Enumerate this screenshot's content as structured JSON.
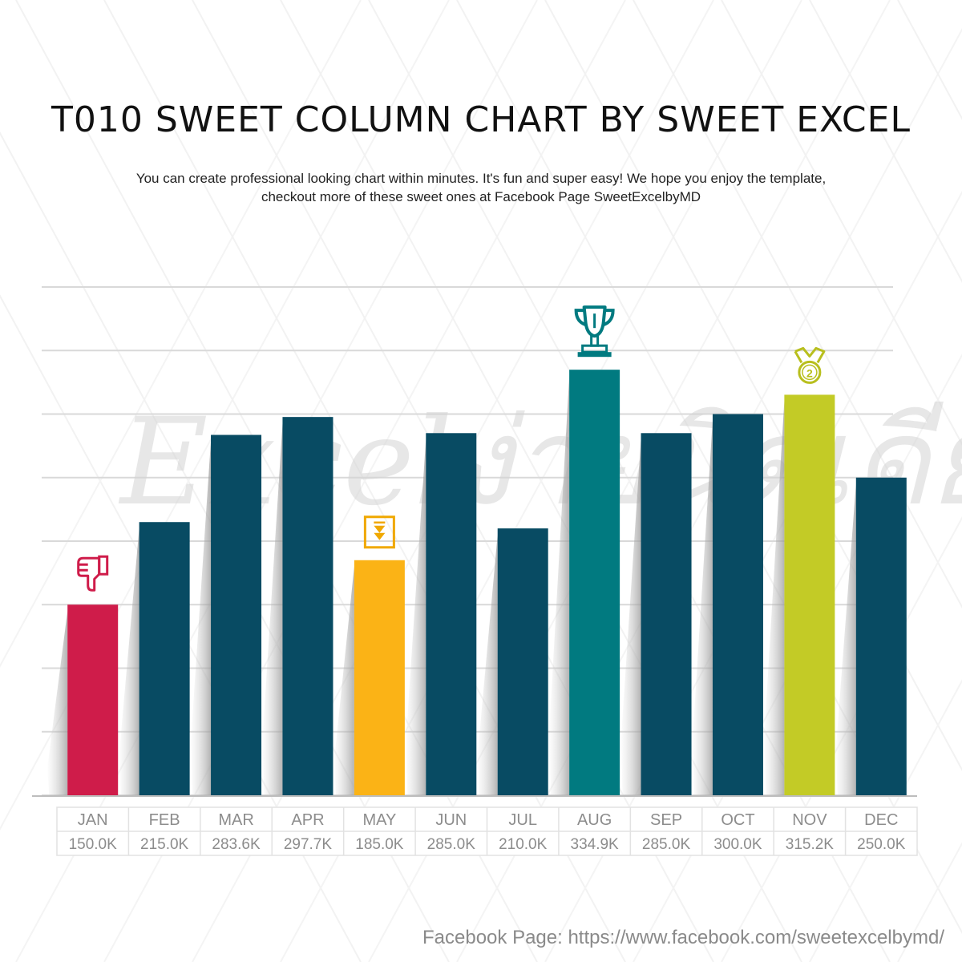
{
  "page": {
    "title": "T010 SWEET COLUMN CHART BY SWEET EXCEL",
    "subtitle_line1": "You can create professional looking chart within minutes. It's fun and super easy! We  hope you enjoy the template,",
    "subtitle_line2": "checkout more of these sweet ones at Facebook Page SweetExcelbyMD",
    "footer": "Facebook Page: https://www.facebook.com/sweetexcelbymd/",
    "watermark": "Excelง่ายนิดเดียว"
  },
  "colors": {
    "default_bar": "#084b63",
    "lowest_bar": "#cf1c4a",
    "may_bar": "#fbb316",
    "highest_bar": "#017a80",
    "second_bar": "#c3cb26",
    "grid": "#d9d9d9",
    "table_text": "#8c8c8c"
  },
  "chart_data": {
    "type": "bar",
    "title": "T010 SWEET COLUMN CHART BY SWEET EXCEL",
    "categories": [
      "JAN",
      "FEB",
      "MAR",
      "APR",
      "MAY",
      "JUN",
      "JUL",
      "AUG",
      "SEP",
      "OCT",
      "NOV",
      "DEC"
    ],
    "values": [
      150.0,
      215.0,
      283.6,
      297.7,
      185.0,
      285.0,
      210.0,
      334.9,
      285.0,
      300.0,
      315.2,
      250.0
    ],
    "value_labels": [
      "150.0K",
      "215.0K",
      "283.6K",
      "297.7K",
      "185.0K",
      "285.0K",
      "210.0K",
      "334.9K",
      "285.0K",
      "300.0K",
      "315.2K",
      "250.0K"
    ],
    "ylim": [
      0,
      400
    ],
    "grid": true,
    "highlights": {
      "JAN": {
        "icon": "thumbs-down-icon",
        "color": "lowest_bar"
      },
      "MAY": {
        "icon": "down-arrow-box-icon",
        "color": "may_bar"
      },
      "AUG": {
        "icon": "trophy-icon",
        "color": "highest_bar"
      },
      "NOV": {
        "icon": "second-place-medal-icon",
        "color": "second_bar",
        "icon_label": "2"
      }
    }
  }
}
